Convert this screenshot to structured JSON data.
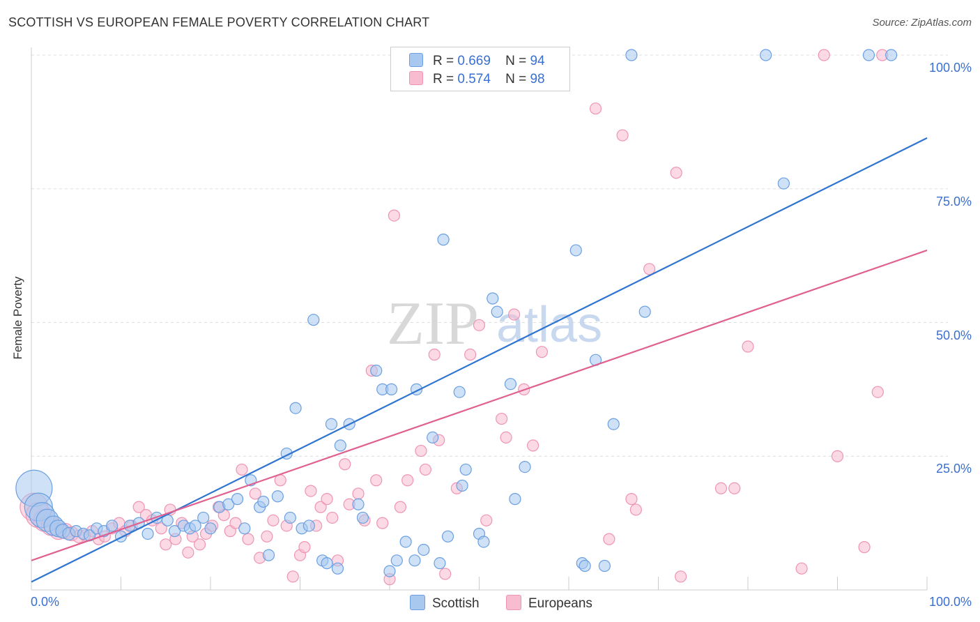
{
  "title": "SCOTTISH VS EUROPEAN FEMALE POVERTY CORRELATION CHART",
  "source": "Source: ZipAtlas.com",
  "watermark": {
    "zip": "ZIP",
    "atlas": "atlas"
  },
  "colors": {
    "scottish_fill": "#a8c8f0",
    "scottish_stroke": "#6a9fe0",
    "scottish_line": "#2f74d0",
    "european_fill": "#f8bcd0",
    "european_stroke": "#ee94b4",
    "european_line": "#e0608f",
    "grid": "#dddddd",
    "tick_text": "#3a6fcf"
  },
  "legend": {
    "rows": [
      {
        "r_label": "R =",
        "r_value": "0.669",
        "n_label": "N =",
        "n_value": "94"
      },
      {
        "r_label": "R =",
        "r_value": "0.574",
        "n_label": "N =",
        "n_value": "98"
      }
    ],
    "bottom": [
      "Scottish",
      "Europeans"
    ]
  },
  "chart_data": {
    "type": "scatter",
    "title": "SCOTTISH VS EUROPEAN FEMALE POVERTY CORRELATION CHART",
    "xlabel": "",
    "ylabel": "Female Poverty",
    "xlim": [
      0,
      100
    ],
    "ylim": [
      0,
      100
    ],
    "x_tick_labels": [
      "0.0%",
      "100.0%"
    ],
    "y_tick_labels": [
      "25.0%",
      "50.0%",
      "75.0%",
      "100.0%"
    ],
    "y_ticks": [
      25,
      50,
      75,
      100
    ],
    "grid": true,
    "legend_position": "top-center",
    "series": [
      {
        "name": "Scottish",
        "r": 0.669,
        "n": 94,
        "trendline": {
          "x": [
            0,
            100
          ],
          "y": [
            1.5,
            84.5
          ]
        },
        "points": [
          [
            0.3,
            19,
            26
          ],
          [
            0.8,
            15.5,
            20
          ],
          [
            1.2,
            14,
            18
          ],
          [
            1.8,
            13,
            16
          ],
          [
            2.5,
            12,
            14
          ],
          [
            3,
            11.5,
            12
          ],
          [
            3.5,
            11,
            10
          ],
          [
            4.2,
            10.5,
            9
          ],
          [
            5,
            11,
            8
          ],
          [
            5.8,
            10.5,
            8
          ],
          [
            6.5,
            10.2,
            8
          ],
          [
            7.3,
            11.5,
            8
          ],
          [
            8.1,
            11,
            8
          ],
          [
            9,
            12,
            8
          ],
          [
            10,
            10,
            8
          ],
          [
            11,
            12,
            8
          ],
          [
            12,
            12.5,
            8
          ],
          [
            13,
            10.5,
            8
          ],
          [
            14,
            13.5,
            8
          ],
          [
            15.2,
            13,
            8
          ],
          [
            16,
            11,
            8
          ],
          [
            17,
            12,
            8
          ],
          [
            17.7,
            11.5,
            8
          ],
          [
            18.3,
            12,
            8
          ],
          [
            19.2,
            13.5,
            8
          ],
          [
            20,
            11.5,
            8
          ],
          [
            21,
            15.5,
            8
          ],
          [
            22,
            16,
            8
          ],
          [
            23,
            17,
            8
          ],
          [
            23.8,
            11.5,
            8
          ],
          [
            24.5,
            20.5,
            8
          ],
          [
            25.5,
            15.5,
            8
          ],
          [
            25.9,
            16.5,
            8
          ],
          [
            26.5,
            6.5,
            8
          ],
          [
            27.5,
            17.5,
            8
          ],
          [
            28.5,
            25.5,
            8
          ],
          [
            28.9,
            13.5,
            8
          ],
          [
            29.5,
            34,
            8
          ],
          [
            30.2,
            11.5,
            8
          ],
          [
            31,
            12,
            8
          ],
          [
            31.5,
            50.5,
            8
          ],
          [
            32.5,
            5.5,
            8
          ],
          [
            33,
            5,
            8
          ],
          [
            33.5,
            31,
            8
          ],
          [
            34.2,
            4,
            8
          ],
          [
            34.5,
            27,
            8
          ],
          [
            35.5,
            31,
            8
          ],
          [
            36.5,
            16,
            8
          ],
          [
            37,
            13.5,
            8
          ],
          [
            38.5,
            41,
            8
          ],
          [
            39.2,
            37.5,
            8
          ],
          [
            40,
            3.5,
            8
          ],
          [
            40.2,
            37.5,
            8
          ],
          [
            40.8,
            5.5,
            8
          ],
          [
            41.8,
            9,
            8
          ],
          [
            42.8,
            5.5,
            8
          ],
          [
            43,
            37.5,
            8
          ],
          [
            43.8,
            7.5,
            8
          ],
          [
            44.8,
            28.5,
            8
          ],
          [
            45.6,
            5,
            8
          ],
          [
            46,
            65.5,
            8
          ],
          [
            46.5,
            10,
            8
          ],
          [
            47.8,
            37,
            8
          ],
          [
            48.1,
            19.5,
            8
          ],
          [
            48.5,
            22.5,
            8
          ],
          [
            50,
            10.5,
            8
          ],
          [
            50.5,
            9,
            8
          ],
          [
            51.5,
            54.5,
            8
          ],
          [
            52,
            52,
            8
          ],
          [
            53.5,
            38.5,
            8
          ],
          [
            54,
            17,
            8
          ],
          [
            55.1,
            23,
            8
          ],
          [
            60.8,
            63.5,
            8
          ],
          [
            61.5,
            5,
            8
          ],
          [
            61.8,
            4.5,
            8
          ],
          [
            63,
            43,
            8
          ],
          [
            64,
            4.5,
            8
          ],
          [
            65,
            31,
            8
          ],
          [
            68.5,
            52,
            8
          ],
          [
            84,
            76,
            8
          ],
          [
            93.5,
            100,
            8
          ],
          [
            67,
            100,
            8
          ],
          [
            82,
            100,
            8
          ],
          [
            96,
            100,
            8
          ]
        ]
      },
      {
        "name": "Europeans",
        "r": 0.574,
        "n": 98,
        "trendline": {
          "x": [
            0,
            100
          ],
          "y": [
            5.5,
            63.5
          ]
        },
        "points": [
          [
            0.3,
            15.5,
            20
          ],
          [
            0.8,
            14,
            18
          ],
          [
            1.5,
            13,
            16
          ],
          [
            2.2,
            12,
            14
          ],
          [
            3,
            11,
            12
          ],
          [
            3.8,
            11,
            11
          ],
          [
            4.5,
            10.5,
            10
          ],
          [
            5.3,
            10,
            9
          ],
          [
            6,
            10.2,
            8
          ],
          [
            6.8,
            11,
            8
          ],
          [
            7.5,
            9.5,
            8
          ],
          [
            8.2,
            10,
            8
          ],
          [
            9,
            11.5,
            8
          ],
          [
            9.8,
            12.5,
            8
          ],
          [
            10.5,
            11,
            8
          ],
          [
            11.2,
            12,
            8
          ],
          [
            12,
            15.5,
            8
          ],
          [
            12.8,
            14,
            8
          ],
          [
            13.5,
            13,
            8
          ],
          [
            14.5,
            11.5,
            8
          ],
          [
            15,
            8.5,
            8
          ],
          [
            15.5,
            15,
            8
          ],
          [
            16.1,
            9.5,
            8
          ],
          [
            16.8,
            12.5,
            8
          ],
          [
            17.5,
            7,
            8
          ],
          [
            18,
            10,
            8
          ],
          [
            18.8,
            8.5,
            8
          ],
          [
            19.5,
            10.5,
            8
          ],
          [
            20.2,
            12,
            8
          ],
          [
            20.9,
            15.5,
            8
          ],
          [
            21.5,
            14,
            8
          ],
          [
            22.2,
            11,
            8
          ],
          [
            22.8,
            12.5,
            8
          ],
          [
            23.5,
            22.5,
            8
          ],
          [
            24.2,
            9.5,
            8
          ],
          [
            25,
            18,
            8
          ],
          [
            25.5,
            6,
            8
          ],
          [
            26.3,
            10,
            8
          ],
          [
            27,
            13,
            8
          ],
          [
            27.8,
            20.5,
            8
          ],
          [
            28.5,
            12,
            8
          ],
          [
            29.2,
            2.5,
            8
          ],
          [
            30,
            6.5,
            8
          ],
          [
            30.5,
            8,
            8
          ],
          [
            31.2,
            18.5,
            8
          ],
          [
            31.8,
            12,
            8
          ],
          [
            32.3,
            15.5,
            8
          ],
          [
            33,
            17,
            8
          ],
          [
            33.6,
            13.5,
            8
          ],
          [
            34.2,
            5.5,
            8
          ],
          [
            35,
            23.5,
            8
          ],
          [
            35.5,
            16,
            8
          ],
          [
            36.5,
            18,
            8
          ],
          [
            37.2,
            13,
            8
          ],
          [
            38,
            41,
            8
          ],
          [
            38.5,
            20.5,
            8
          ],
          [
            39.2,
            12.5,
            8
          ],
          [
            40,
            2,
            8
          ],
          [
            40.5,
            70,
            8
          ],
          [
            41.2,
            15.5,
            8
          ],
          [
            42,
            20.5,
            8
          ],
          [
            43.5,
            26,
            8
          ],
          [
            44,
            22.5,
            8
          ],
          [
            45,
            44,
            8
          ],
          [
            45.5,
            28,
            8
          ],
          [
            46.2,
            3,
            8
          ],
          [
            47.5,
            19,
            8
          ],
          [
            49,
            44,
            8
          ],
          [
            50,
            49.5,
            8
          ],
          [
            50.8,
            13,
            8
          ],
          [
            52.5,
            32,
            8
          ],
          [
            53,
            28.5,
            8
          ],
          [
            53.9,
            51.5,
            8
          ],
          [
            55,
            37.5,
            8
          ],
          [
            56,
            27,
            8
          ],
          [
            57,
            44.5,
            8
          ],
          [
            63,
            90,
            8
          ],
          [
            64.5,
            9.5,
            8
          ],
          [
            66,
            85,
            8
          ],
          [
            67,
            17,
            8
          ],
          [
            67.5,
            15,
            8
          ],
          [
            69,
            60,
            8
          ],
          [
            72,
            78,
            8
          ],
          [
            72.5,
            2.5,
            8
          ],
          [
            77,
            19,
            8
          ],
          [
            78.5,
            19,
            8
          ],
          [
            80,
            45.5,
            8
          ],
          [
            86,
            4,
            8
          ],
          [
            88.5,
            100,
            8
          ],
          [
            90,
            25,
            8
          ],
          [
            93,
            8,
            8
          ],
          [
            94.5,
            37,
            8
          ],
          [
            95,
            100,
            8
          ]
        ]
      }
    ]
  }
}
